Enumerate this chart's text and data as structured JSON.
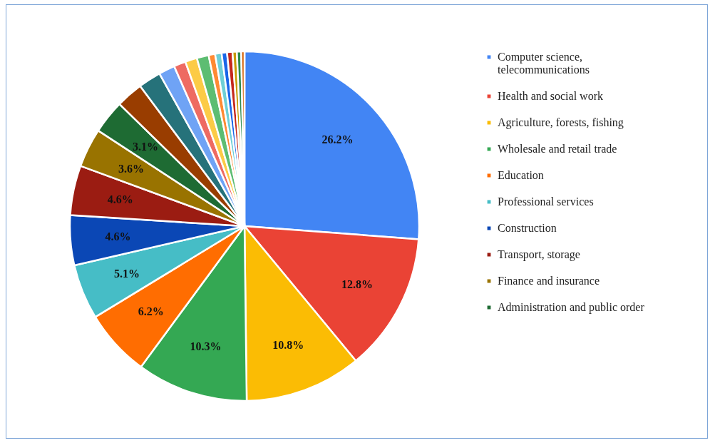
{
  "chart_data": {
    "type": "pie",
    "categories": [
      "Computer science, telecommunications",
      "Health and social work",
      "Agriculture, forests, fishing",
      "Wholesale and retail trade",
      "Education",
      "Professional services",
      "Construction",
      "Transport, storage",
      "Finance and insurance",
      "Administration and public order",
      null,
      null,
      null,
      null,
      null,
      null,
      null,
      null,
      null,
      null,
      null,
      null,
      null
    ],
    "values": [
      26.2,
      12.8,
      10.8,
      10.3,
      6.2,
      5.1,
      4.6,
      4.6,
      3.6,
      3.1,
      2.5,
      2.1,
      1.5,
      1.1,
      1.1,
      1.1,
      0.6,
      0.6,
      0.5,
      0.5,
      0.4,
      0.4,
      0.3
    ],
    "value_labels": [
      "26.2%",
      "12.8%",
      "10.8%",
      "10.3%",
      "6.2%",
      "5.1%",
      "4.6%",
      "4.6%",
      "3.6%",
      "3.1%",
      null,
      null,
      null,
      null,
      null,
      null,
      null,
      null,
      null,
      null,
      null,
      null,
      null
    ],
    "colors": [
      "#4285f4",
      "#ea4335",
      "#fbbc04",
      "#34a853",
      "#ff6d01",
      "#46bdc6",
      "#0b47b5",
      "#9b1c12",
      "#997300",
      "#1e6b33",
      "#993d00",
      "#26727a",
      "#6fa3f5",
      "#ee6b62",
      "#fccb46",
      "#5dbd72",
      "#ff8a33",
      "#6fcfd6",
      "#1a66e8",
      "#c5271d",
      "#c89a00",
      "#2e8b4d",
      "#d35e00"
    ],
    "legend": "right"
  }
}
